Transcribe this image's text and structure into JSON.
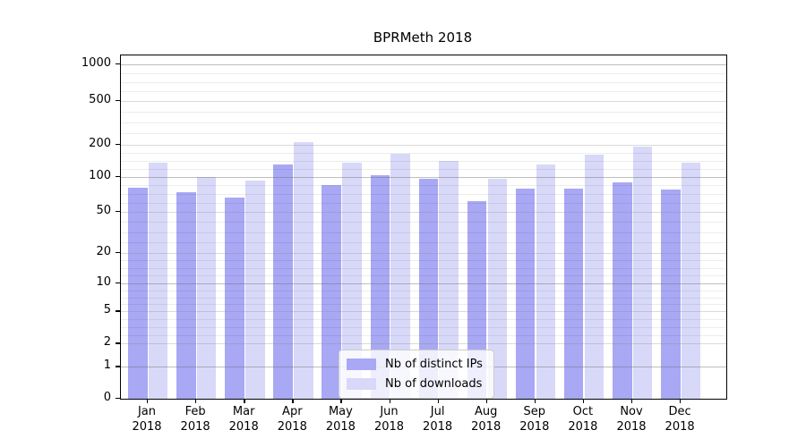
{
  "title": "BPRMeth 2018",
  "colors": {
    "distinct_ips_bar": "#a8a8f4",
    "downloads_bar": "#d8d8f8",
    "axis": "#000000"
  },
  "legend": {
    "items": [
      {
        "label": "Nb of distinct IPs",
        "series": "distinct_ips"
      },
      {
        "label": "Nb of downloads",
        "series": "downloads"
      }
    ]
  },
  "chart_data": {
    "type": "bar",
    "title": "BPRMeth 2018",
    "categories": [
      "Jan 2018",
      "Feb 2018",
      "Mar 2018",
      "Apr 2018",
      "May 2018",
      "Jun 2018",
      "Jul 2018",
      "Aug 2018",
      "Sep 2018",
      "Oct 2018",
      "Nov 2018",
      "Dec 2018"
    ],
    "x_tick_line1": [
      "Jan",
      "Feb",
      "Mar",
      "Apr",
      "May",
      "Jun",
      "Jul",
      "Aug",
      "Sep",
      "Oct",
      "Nov",
      "Dec"
    ],
    "x_tick_line2": "2018",
    "series": [
      {
        "name": "Nb of distinct IPs",
        "color": "#a8a8f4",
        "values": [
          81,
          74,
          66,
          129,
          85,
          103,
          96,
          62,
          79,
          79,
          90,
          77
        ]
      },
      {
        "name": "Nb of downloads",
        "color": "#d8d8f8",
        "values": [
          135,
          100,
          92,
          210,
          134,
          163,
          140,
          96,
          129,
          162,
          190,
          135
        ]
      }
    ],
    "xlabel": "",
    "ylabel": "",
    "yscale": "log-like (ticks 0,1,2,5,10,20,50,100,200,500,1000)",
    "y_ticks": [
      0,
      1,
      2,
      5,
      10,
      20,
      50,
      100,
      200,
      500,
      1000
    ],
    "ylim": [
      0,
      1500
    ],
    "grid": "horizontal major + minor",
    "legend_position": "lower center inside plot"
  }
}
